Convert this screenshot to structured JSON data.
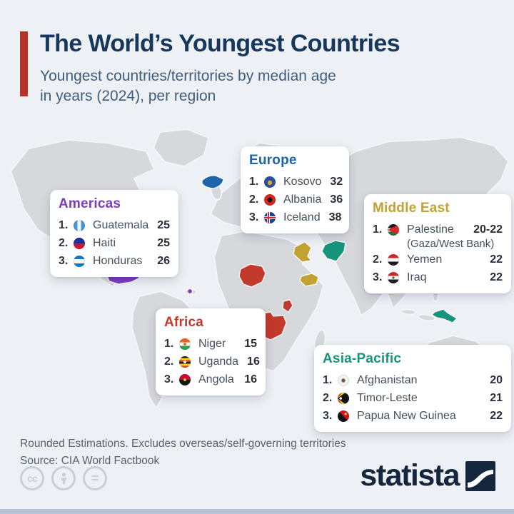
{
  "header": {
    "title": "The World’s Youngest Countries",
    "subtitle_line1": "Youngest countries/territories by median age",
    "subtitle_line2": "in years (2024), per region",
    "accent_color": "#b73229",
    "title_color": "#17375c"
  },
  "regions": [
    {
      "id": "americas",
      "label": "Americas",
      "color": "#7e3bc0",
      "entries": [
        {
          "rank": "1.",
          "flag": "guatemala",
          "country": "Guatemala",
          "value": "25"
        },
        {
          "rank": "2.",
          "flag": "haiti",
          "country": "Haiti",
          "value": "25"
        },
        {
          "rank": "3.",
          "flag": "honduras",
          "country": "Honduras",
          "value": "26"
        }
      ]
    },
    {
      "id": "europe",
      "label": "Europe",
      "color": "#1d64ab",
      "entries": [
        {
          "rank": "1.",
          "flag": "kosovo",
          "country": "Kosovo",
          "value": "32"
        },
        {
          "rank": "2.",
          "flag": "albania",
          "country": "Albania",
          "value": "36"
        },
        {
          "rank": "3.",
          "flag": "iceland",
          "country": "Iceland",
          "value": "38"
        }
      ]
    },
    {
      "id": "middle-east",
      "label": "Middle East",
      "color": "#c2a233",
      "entries": [
        {
          "rank": "1.",
          "flag": "palestine",
          "country": "Palestine",
          "sub": "(Gaza/West Bank)",
          "value": "20-22"
        },
        {
          "rank": "2.",
          "flag": "yemen",
          "country": "Yemen",
          "value": "22"
        },
        {
          "rank": "3.",
          "flag": "iraq",
          "country": "Iraq",
          "value": "22"
        }
      ]
    },
    {
      "id": "africa",
      "label": "Africa",
      "color": "#c23a2c",
      "entries": [
        {
          "rank": "1.",
          "flag": "niger",
          "country": "Niger",
          "value": "15"
        },
        {
          "rank": "2.",
          "flag": "uganda",
          "country": "Uganda",
          "value": "16"
        },
        {
          "rank": "3.",
          "flag": "angola",
          "country": "Angola",
          "value": "16"
        }
      ]
    },
    {
      "id": "asia-pacific",
      "label": "Asia-Pacific",
      "color": "#17947c",
      "entries": [
        {
          "rank": "1.",
          "flag": "afghanistan",
          "country": "Afghanistan",
          "value": "20"
        },
        {
          "rank": "2.",
          "flag": "timor-leste",
          "country": "Timor-Leste",
          "value": "21"
        },
        {
          "rank": "3.",
          "flag": "papua-new-guinea",
          "country": "Papua New Guinea",
          "value": "22"
        }
      ]
    }
  ],
  "chart_data": {
    "type": "table",
    "title": "The World’s Youngest Countries",
    "subtitle": "Youngest countries/territories by median age in years (2024), per region",
    "regions": [
      {
        "region": "Americas",
        "entries": [
          {
            "rank": 1,
            "country": "Guatemala",
            "median_age": 25
          },
          {
            "rank": 2,
            "country": "Haiti",
            "median_age": 25
          },
          {
            "rank": 3,
            "country": "Honduras",
            "median_age": 26
          }
        ]
      },
      {
        "region": "Europe",
        "entries": [
          {
            "rank": 1,
            "country": "Kosovo",
            "median_age": 32
          },
          {
            "rank": 2,
            "country": "Albania",
            "median_age": 36
          },
          {
            "rank": 3,
            "country": "Iceland",
            "median_age": 38
          }
        ]
      },
      {
        "region": "Middle East",
        "entries": [
          {
            "rank": 1,
            "country": "Palestine (Gaza/West Bank)",
            "median_age": "20-22"
          },
          {
            "rank": 2,
            "country": "Yemen",
            "median_age": 22
          },
          {
            "rank": 3,
            "country": "Iraq",
            "median_age": 22
          }
        ]
      },
      {
        "region": "Africa",
        "entries": [
          {
            "rank": 1,
            "country": "Niger",
            "median_age": 15
          },
          {
            "rank": 2,
            "country": "Uganda",
            "median_age": 16
          },
          {
            "rank": 3,
            "country": "Angola",
            "median_age": 16
          }
        ]
      },
      {
        "region": "Asia-Pacific",
        "entries": [
          {
            "rank": 1,
            "country": "Afghanistan",
            "median_age": 20
          },
          {
            "rank": 2,
            "country": "Timor-Leste",
            "median_age": 21
          },
          {
            "rank": 3,
            "country": "Papua New Guinea",
            "median_age": 22
          }
        ]
      }
    ]
  },
  "footer": {
    "note_line1": "Rounded Estimations. Excludes overseas/self-governing territories",
    "note_line2": "Source: CIA World Factbook",
    "brand": "statista",
    "license_cc": "cc",
    "license_nd": "="
  }
}
